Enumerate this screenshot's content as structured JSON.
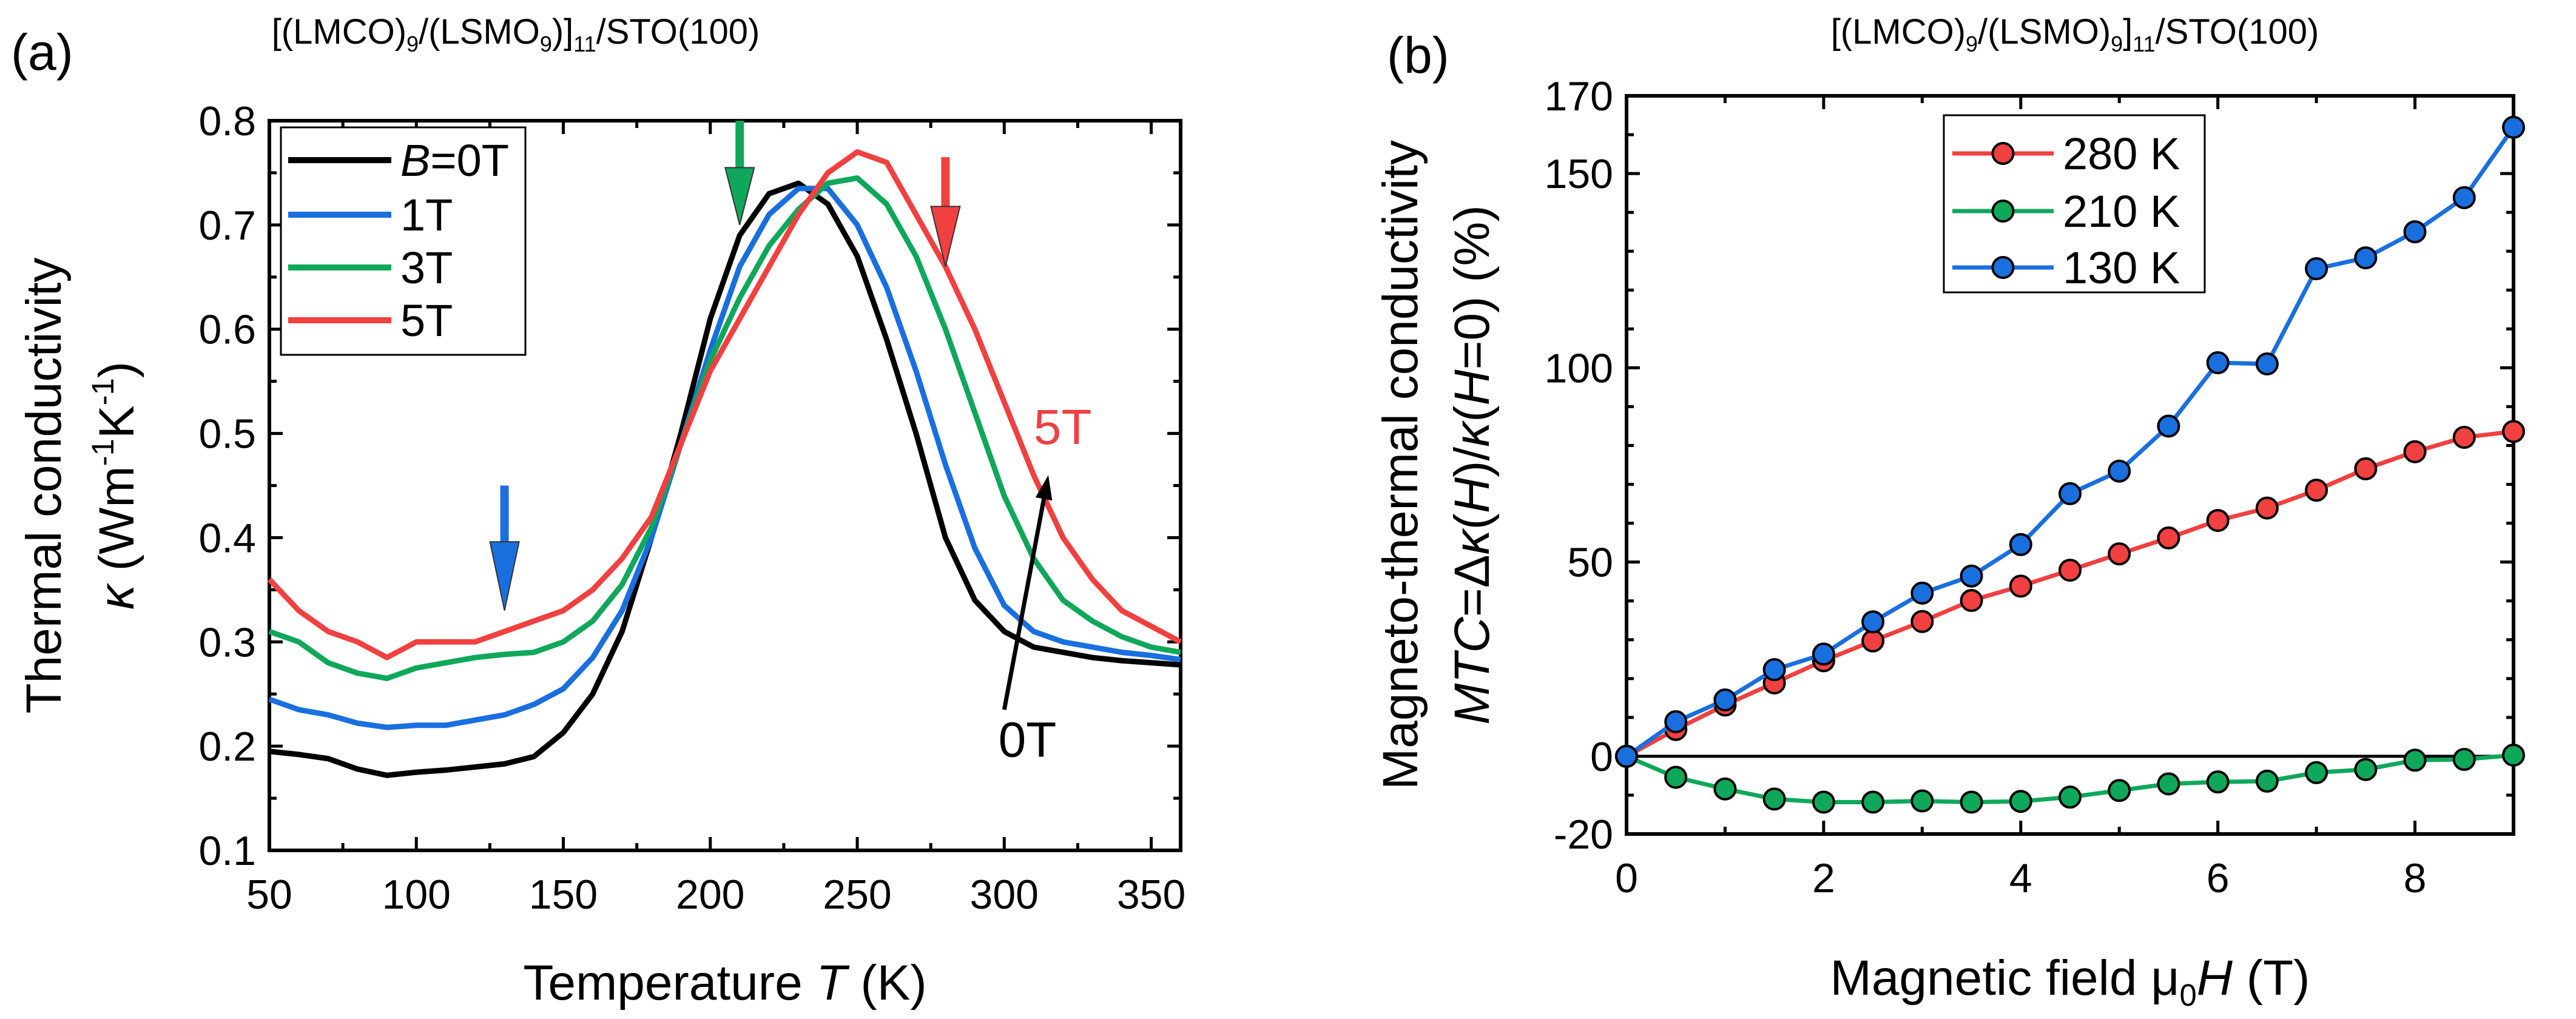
{
  "chart_data": [
    {
      "panel_label": "(a)",
      "type": "line",
      "title": [
        {
          "t": "[(LMCO)"
        },
        {
          "t": "9",
          "sub": true
        },
        {
          "t": "/(LSMO"
        },
        {
          "t": "9",
          "sub": true
        },
        {
          "t": ")]"
        },
        {
          "t": "11",
          "sub": true
        },
        {
          "t": "/STO(100)"
        }
      ],
      "xlabel": [
        {
          "t": "Temperature "
        },
        {
          "t": "T",
          "i": true
        },
        {
          "t": " (K)"
        }
      ],
      "ylabel_lines": [
        [
          {
            "t": "Thermal conductivity"
          }
        ],
        [
          {
            "t": "κ",
            "i": true
          },
          {
            "t": " (Wm"
          },
          {
            "t": "-1",
            "sup": true
          },
          {
            "t": "K"
          },
          {
            "t": "-1",
            "sup": true
          },
          {
            "t": ")"
          }
        ]
      ],
      "xlim": [
        50,
        360
      ],
      "ylim": [
        0.1,
        0.8
      ],
      "xticks": [
        50,
        100,
        150,
        200,
        250,
        300,
        350
      ],
      "yticks": [
        0.1,
        0.2,
        0.3,
        0.4,
        0.5,
        0.6,
        0.7,
        0.8
      ],
      "grid": false,
      "legend_position": "top-left",
      "x": [
        50,
        60,
        70,
        80,
        90,
        100,
        110,
        120,
        130,
        140,
        150,
        160,
        170,
        180,
        190,
        200,
        210,
        220,
        230,
        240,
        250,
        260,
        270,
        280,
        290,
        300,
        310,
        320,
        330,
        340,
        350,
        360
      ],
      "series": [
        {
          "name": [
            {
              "t": "B",
              "i": true
            },
            {
              "t": "=0T"
            }
          ],
          "color": "#000000",
          "values": [
            0.195,
            0.192,
            0.188,
            0.178,
            0.172,
            0.175,
            0.177,
            0.18,
            0.183,
            0.19,
            0.213,
            0.25,
            0.31,
            0.4,
            0.5,
            0.61,
            0.69,
            0.73,
            0.74,
            0.72,
            0.67,
            0.59,
            0.5,
            0.4,
            0.34,
            0.31,
            0.295,
            0.29,
            0.285,
            0.282,
            0.28,
            0.278
          ]
        },
        {
          "name": [
            {
              "t": "1T"
            }
          ],
          "color": "#1a6fdf",
          "values": [
            0.245,
            0.235,
            0.23,
            0.222,
            0.218,
            0.22,
            0.22,
            0.225,
            0.23,
            0.24,
            0.255,
            0.285,
            0.33,
            0.4,
            0.49,
            0.58,
            0.66,
            0.71,
            0.735,
            0.735,
            0.7,
            0.64,
            0.56,
            0.47,
            0.39,
            0.335,
            0.31,
            0.3,
            0.295,
            0.29,
            0.287,
            0.283
          ]
        },
        {
          "name": [
            {
              "t": "3T"
            }
          ],
          "color": "#0fa85a",
          "values": [
            0.31,
            0.3,
            0.28,
            0.27,
            0.265,
            0.275,
            0.28,
            0.285,
            0.288,
            0.29,
            0.3,
            0.32,
            0.355,
            0.41,
            0.49,
            0.57,
            0.63,
            0.68,
            0.715,
            0.74,
            0.745,
            0.72,
            0.67,
            0.6,
            0.52,
            0.44,
            0.38,
            0.34,
            0.32,
            0.305,
            0.295,
            0.29
          ]
        },
        {
          "name": [
            {
              "t": "5T"
            }
          ],
          "color": "#f14040",
          "values": [
            0.36,
            0.33,
            0.31,
            0.3,
            0.285,
            0.3,
            0.3,
            0.3,
            0.31,
            0.32,
            0.33,
            0.35,
            0.38,
            0.42,
            0.49,
            0.56,
            0.61,
            0.66,
            0.71,
            0.75,
            0.77,
            0.76,
            0.71,
            0.66,
            0.6,
            0.53,
            0.46,
            0.4,
            0.36,
            0.33,
            0.315,
            0.3
          ]
        }
      ],
      "annotations": [
        {
          "type": "arrow",
          "color": "#1a6fdf",
          "from": [
            130,
            0.45
          ],
          "to": [
            130,
            0.33
          ],
          "style": "block"
        },
        {
          "type": "arrow",
          "color": "#0fa85a",
          "from": [
            210,
            0.8
          ],
          "to": [
            210,
            0.7
          ],
          "style": "block"
        },
        {
          "type": "arrow",
          "color": "#f14040",
          "from": [
            280,
            0.765
          ],
          "to": [
            280,
            0.66
          ],
          "style": "block"
        },
        {
          "type": "arrow",
          "color": "#000000",
          "from": [
            300,
            0.235
          ],
          "to": [
            315,
            0.46
          ],
          "style": "line"
        },
        {
          "type": "text",
          "text": "5T",
          "color": "#f14040",
          "at": [
            310,
            0.49
          ]
        },
        {
          "type": "text",
          "text": "0T",
          "color": "#000000",
          "at": [
            298,
            0.19
          ]
        }
      ]
    },
    {
      "panel_label": "(b)",
      "type": "line",
      "title": [
        {
          "t": "[(LMCO)"
        },
        {
          "t": "9",
          "sub": true
        },
        {
          "t": "/(LSMO)"
        },
        {
          "t": "9",
          "sub": true
        },
        {
          "t": "]"
        },
        {
          "t": "11",
          "sub": true
        },
        {
          "t": "/STO(100)"
        }
      ],
      "xlabel": [
        {
          "t": "Magnetic field μ"
        },
        {
          "t": "0",
          "sub": true
        },
        {
          "t": "H",
          "i": true
        },
        {
          "t": " (T)"
        }
      ],
      "ylabel_lines": [
        [
          {
            "t": "Magneto-thermal conductivity"
          }
        ],
        [
          {
            "t": "MTC",
            "i": true
          },
          {
            "t": "=Δ"
          },
          {
            "t": "κ",
            "i": true
          },
          {
            "t": "("
          },
          {
            "t": "H",
            "i": true
          },
          {
            "t": ")/"
          },
          {
            "t": "κ",
            "i": true
          },
          {
            "t": "("
          },
          {
            "t": "H",
            "i": true
          },
          {
            "t": "=0)  (%)"
          }
        ]
      ],
      "xlim": [
        0,
        9
      ],
      "ylim": [
        -20,
        170
      ],
      "xticks": [
        0,
        2,
        4,
        6,
        8
      ],
      "yticks": [
        -20,
        0,
        50,
        100,
        150,
        170
      ],
      "grid": false,
      "reference_line_y": 0,
      "legend_position": "top-center",
      "x": [
        0,
        0.5,
        1,
        1.5,
        2,
        2.5,
        3,
        3.5,
        4,
        4.5,
        5,
        5.5,
        6,
        6.5,
        7,
        7.5,
        8,
        8.5,
        9
      ],
      "series": [
        {
          "name": [
            {
              "t": "280 K"
            }
          ],
          "color": "#f14040",
          "values": [
            0,
            6.9,
            13.2,
            18.9,
            24.6,
            29.7,
            34.7,
            40.1,
            43.8,
            47.9,
            52.1,
            56.2,
            60.7,
            63.9,
            68.5,
            74.0,
            78.4,
            82.1,
            83.6
          ]
        },
        {
          "name": [
            {
              "t": "210 K"
            }
          ],
          "color": "#0fa85a",
          "values": [
            0,
            -5.4,
            -8.4,
            -11.0,
            -11.8,
            -11.8,
            -11.5,
            -11.8,
            -11.6,
            -10.5,
            -8.8,
            -7.1,
            -6.6,
            -6.4,
            -4.2,
            -3.4,
            -1.0,
            -0.8,
            0.3
          ]
        },
        {
          "name": [
            {
              "t": "130 K"
            }
          ],
          "color": "#1a6fdf",
          "values": [
            0,
            8.9,
            14.5,
            22.3,
            26.3,
            34.6,
            42.0,
            46.4,
            54.5,
            67.6,
            73.4,
            85.0,
            101.3,
            101.0,
            125.5,
            128.3,
            135.0,
            143.8,
            161.9
          ]
        }
      ]
    }
  ]
}
